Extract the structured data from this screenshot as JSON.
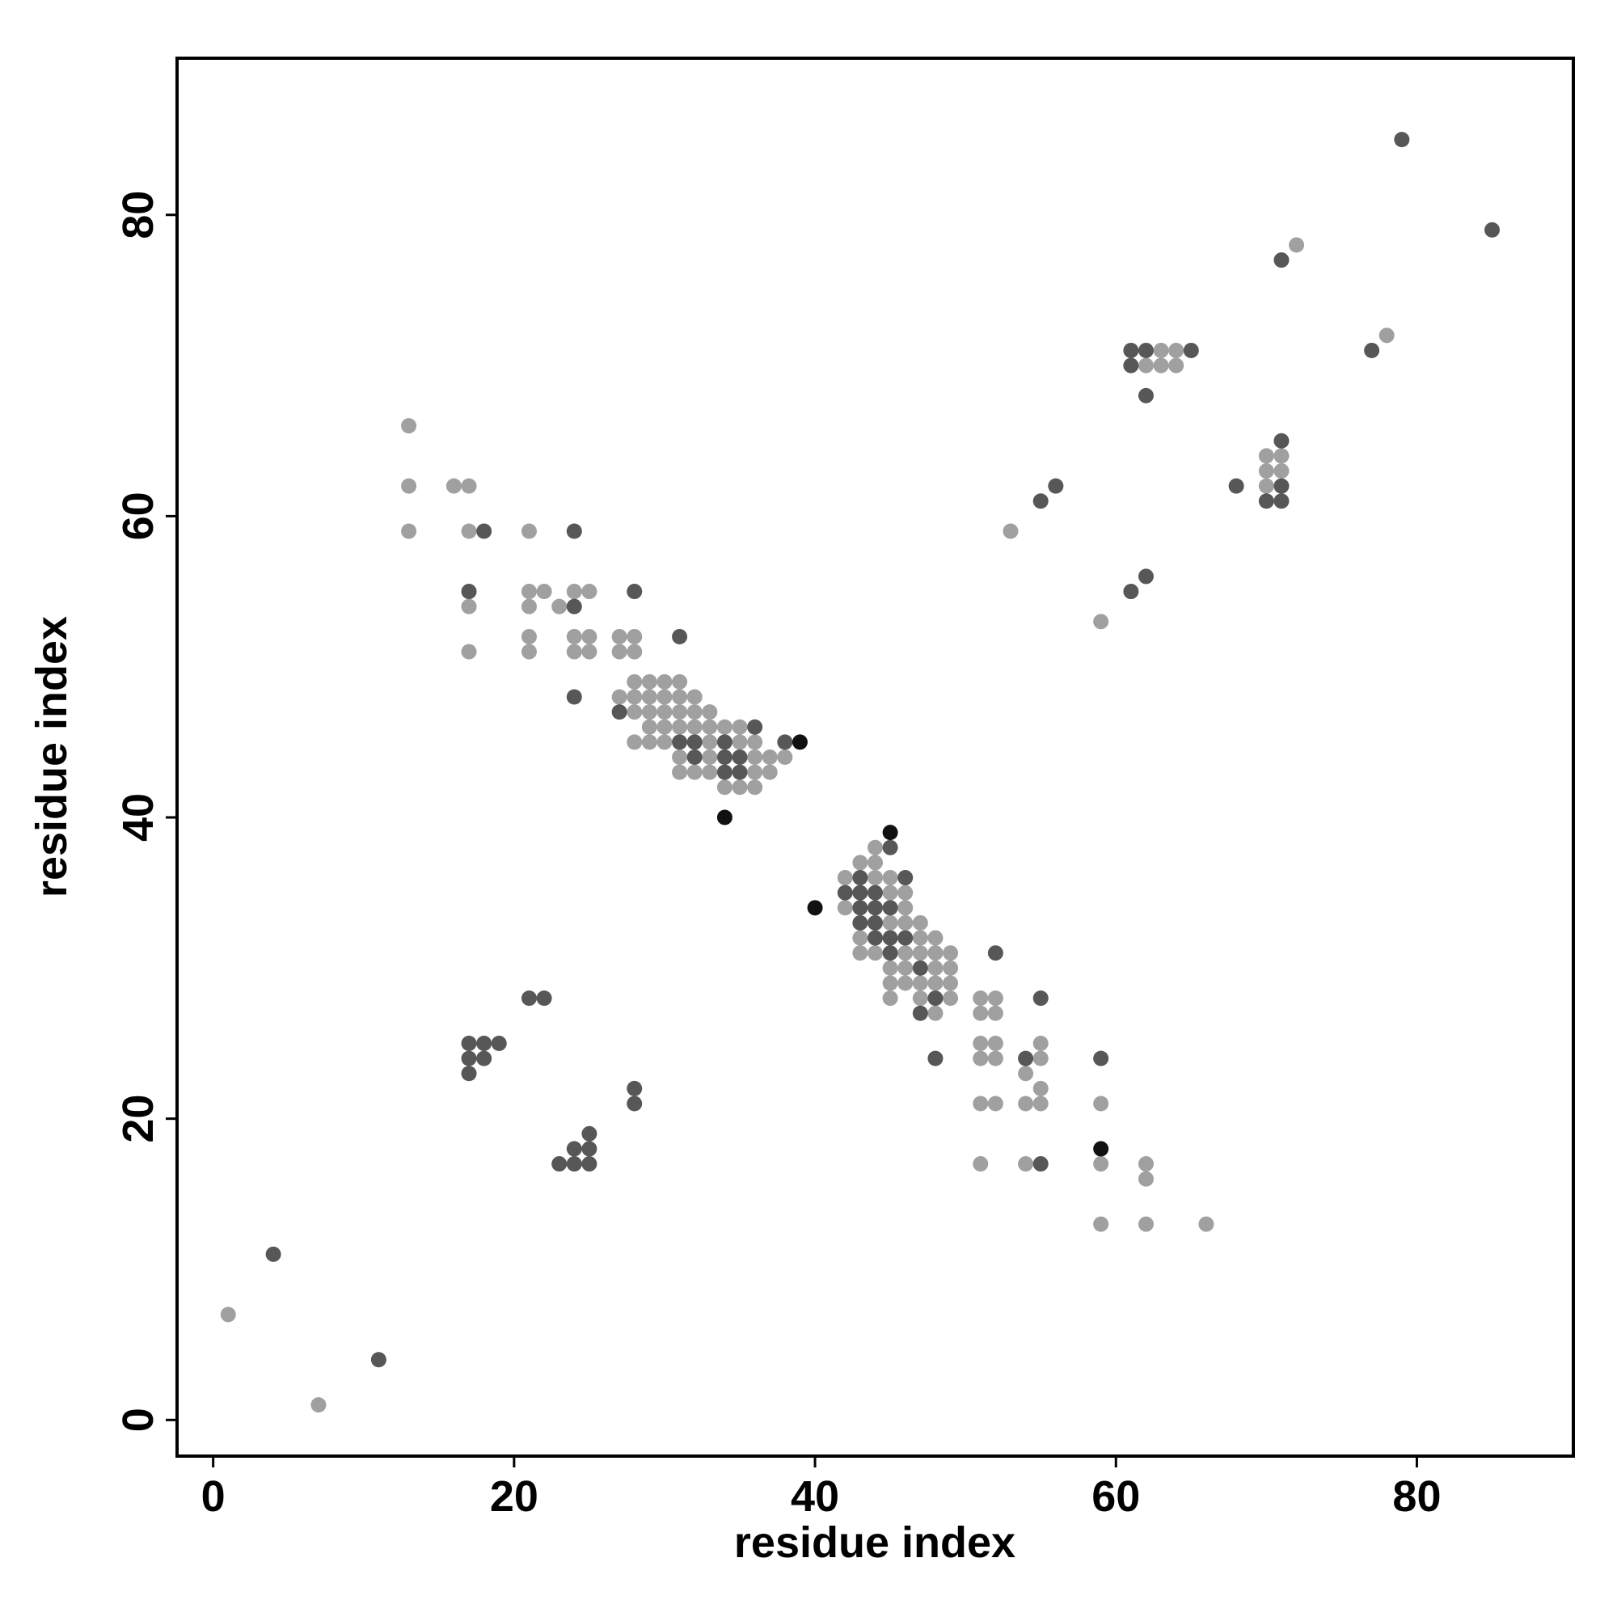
{
  "chart_data": {
    "type": "scatter",
    "xlabel": "residue index",
    "ylabel": "residue index",
    "xlim": [
      -2.4,
      90.4
    ],
    "ylim": [
      -2.4,
      90.4
    ],
    "xticks": [
      0,
      20,
      40,
      60,
      80
    ],
    "yticks": [
      0,
      20,
      40,
      60,
      80
    ],
    "series": [
      {
        "color": "#a0a0a0",
        "x": [
          72,
          78,
          63,
          64,
          62,
          63,
          64,
          70,
          71,
          70,
          71,
          70,
          16,
          17,
          13,
          13,
          13,
          17,
          21,
          53,
          21,
          22,
          24,
          25,
          17,
          21,
          23,
          59,
          21,
          24,
          25,
          27,
          28,
          17,
          21,
          24,
          25,
          27,
          28,
          28,
          29,
          30,
          31,
          27,
          28,
          29,
          30,
          31,
          32,
          28,
          29,
          30,
          31,
          32,
          33,
          29,
          30,
          31,
          32,
          33,
          34,
          35,
          28,
          29,
          30,
          33,
          35,
          36,
          31,
          33,
          36,
          37,
          38,
          31,
          32,
          33,
          36,
          37,
          34,
          35,
          36,
          44,
          43,
          44,
          42,
          44,
          45,
          45,
          46,
          42,
          46,
          45,
          46,
          47,
          43,
          47,
          48,
          43,
          44,
          46,
          47,
          48,
          49,
          45,
          46,
          48,
          49,
          45,
          46,
          47,
          48,
          49,
          45,
          47,
          49,
          51,
          52,
          48,
          51,
          52,
          51,
          52,
          55,
          51,
          52,
          55,
          54,
          55,
          51,
          52,
          54,
          55,
          59,
          51,
          54,
          59,
          62,
          62,
          59,
          62,
          66,
          1,
          7
        ],
        "values": [
          78,
          72,
          71,
          71,
          70,
          70,
          70,
          64,
          64,
          63,
          63,
          62,
          62,
          62,
          62,
          66,
          59,
          59,
          59,
          59,
          55,
          55,
          55,
          55,
          54,
          54,
          54,
          53,
          52,
          52,
          52,
          52,
          52,
          51,
          51,
          51,
          51,
          51,
          51,
          49,
          49,
          49,
          49,
          48,
          48,
          48,
          48,
          48,
          48,
          47,
          47,
          47,
          47,
          47,
          47,
          46,
          46,
          46,
          46,
          46,
          46,
          46,
          45,
          45,
          45,
          45,
          45,
          45,
          44,
          44,
          44,
          44,
          44,
          43,
          43,
          43,
          43,
          43,
          42,
          42,
          42,
          38,
          37,
          37,
          36,
          36,
          36,
          35,
          35,
          34,
          34,
          33,
          33,
          33,
          32,
          32,
          32,
          31,
          31,
          31,
          31,
          31,
          31,
          30,
          30,
          30,
          30,
          29,
          29,
          29,
          29,
          29,
          28,
          28,
          28,
          28,
          28,
          27,
          27,
          27,
          25,
          25,
          25,
          24,
          24,
          24,
          23,
          22,
          21,
          21,
          21,
          21,
          21,
          17,
          17,
          17,
          17,
          16,
          13,
          13,
          13,
          7,
          1
        ]
      },
      {
        "color": "#575757",
        "x": [
          79,
          85,
          71,
          77,
          61,
          62,
          65,
          61,
          62,
          71,
          68,
          71,
          56,
          70,
          71,
          55,
          18,
          24,
          62,
          17,
          28,
          61,
          24,
          31,
          24,
          27,
          36,
          31,
          32,
          34,
          38,
          32,
          34,
          35,
          34,
          35,
          45,
          43,
          46,
          42,
          43,
          44,
          43,
          44,
          45,
          43,
          44,
          44,
          45,
          46,
          45,
          52,
          47,
          21,
          22,
          48,
          55,
          47,
          17,
          18,
          19,
          17,
          18,
          48,
          54,
          59,
          17,
          28,
          28,
          25,
          24,
          25,
          23,
          24,
          25,
          55,
          4,
          11
        ],
        "values": [
          85,
          79,
          77,
          71,
          71,
          71,
          71,
          70,
          68,
          65,
          62,
          62,
          62,
          61,
          61,
          61,
          59,
          59,
          56,
          55,
          55,
          55,
          54,
          52,
          48,
          47,
          46,
          45,
          45,
          45,
          45,
          44,
          44,
          44,
          43,
          43,
          38,
          36,
          36,
          35,
          35,
          35,
          34,
          34,
          34,
          33,
          33,
          32,
          32,
          32,
          31,
          31,
          30,
          28,
          28,
          28,
          28,
          27,
          25,
          25,
          25,
          24,
          24,
          24,
          24,
          24,
          23,
          22,
          21,
          19,
          18,
          18,
          17,
          17,
          17,
          17,
          11,
          4
        ]
      },
      {
        "color": "#111111",
        "x": [
          39,
          34,
          45,
          40,
          59
        ],
        "values": [
          45,
          40,
          39,
          34,
          18
        ]
      }
    ]
  }
}
